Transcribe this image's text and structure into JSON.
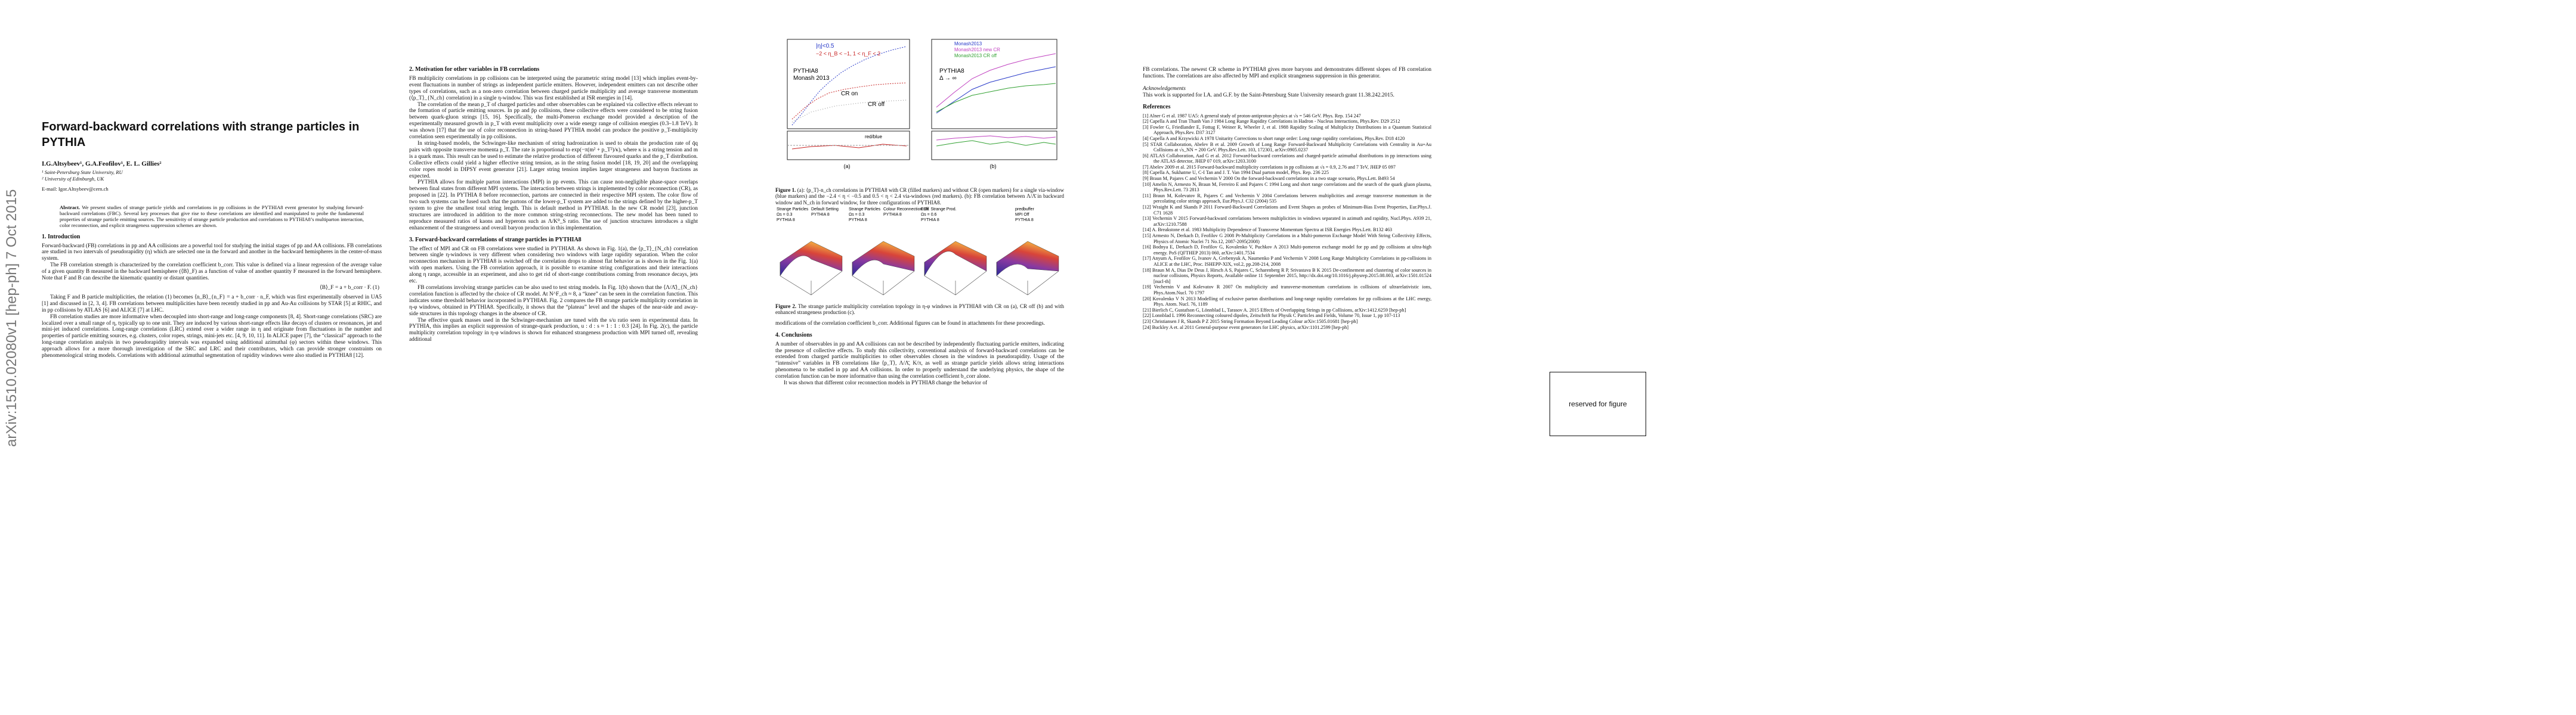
{
  "stamp": "arXiv:1510.02080v1  [hep-ph]  7 Oct 2015",
  "page1": {
    "title": "Forward-backward correlations with strange particles in PYTHIA",
    "authors": "I.G.Altsybeev¹, G.A.Feofilov¹, E. L. Gillies²",
    "affiliations": [
      "¹ Saint-Petersburg State University, RU",
      "² University of Edinburgh, UK"
    ],
    "email": "E-mail: Igor.Altsybeev@cern.ch",
    "abstract_label": "Abstract.",
    "abstract": "We present studies of strange particle yields and correlations in pp collisions in the PYTHIA8 event generator by studying forward-backward correlations (FBC). Several key processes that give rise to these correlations are identified and manipulated to probe the fundamental properties of strange particle emitting sources. The sensitivity of strange particle production and correlations to PYTHIA8’s multiparton interaction, color reconnection, and explicit strangeness suppression schemes are shown.",
    "section": {
      "heading": "1. Introduction",
      "paragraphs": [
        "Forward-backward (FB) correlations in pp and AA collisions are a powerful tool for studying the initial stages of pp and AA collisions. FB correlations are studied in two intervals of pseudorapidity (η) which are selected one in the forward and another in the backward hemispheres in the center-of-mass system.",
        "The FB correlation strength is characterized by the correlation coefficient b_corr. This value is defined via a linear regression of the average value of a given quantity B measured in the backward hemisphere (⟨B⟩_F) as a function of value of another quantity F measured in the forward hemisphere. Note that F and B can describe the kinematic quantity or distant quantities.",
        "⟨B⟩_F = a + b_corr · F.          (1)",
        "Taking F and B particle multiplicities, the relation (1) becomes ⟨n_B⟩_{n_F} = a + b_corr · n_F, which was first experimentally observed in UA5 [1] and discussed in [2, 3, 4]. FB correlations between multiplicities have been recently studied in pp and Au-Au collisions by STAR [5] at RHIC, and in pp collisions by ATLAS [6] and ALICE [7] at LHC.",
        "FB correlation studies are more informative when decoupled into short-range and long-range components [8, 4]. Short-range correlations (SRC) are localized over a small range of η, typically up to one unit. They are induced by various short-range effects like decays of clusters or resonances, jet and mini-jet induced correlations. Long-range correlations (LRC) extend over a wider range in η and originate from fluctuations in the number and properties of particle emitting sources, e.g. clusters, color ropes, strings, mini-jets etc. [4, 9, 10, 11]. In ALICE paper [7], the “classical” approach to the long-range correlation analysis in two pseudorapidity intervals was expanded using additional azimuthal (φ) sectors within these windows. This approach allows for a more thorough investigation of the SRC and LRC and their contributors, which can provide stronger constraints on phenomenological string models. Correlations with additional azimuthal segmentation of rapidity windows were also studied in PYTHIA8 [12]."
      ]
    }
  },
  "page2": {
    "sections": [
      {
        "heading": "2. Motivation for other variables in FB correlations",
        "paragraphs": [
          "FB multiplicity correlations in pp collisions can be interpreted using the parametric string model [13] which implies event-by-event fluctuations in number of strings as independent particle emitters. However, independent emitters can not describe other types of correlations, such as a non-zero correlation between charged particle multiplicity and average transverse momentum (⟨p_T⟩_{N_ch} correlation) in a single η-window. This was first established at ISR energies in [14].",
          "The correlation of the mean p_T of charged particles and other observables can be explained via collective effects relevant to the formation of particle emitting sources. In pp and p̄p collisions, these collective effects were considered to be string fusion between quark-gluon strings [15, 16]. Specifically, the multi-Pomeron exchange model provided a description of the experimentally measured growth in p_T with event multiplicity over a wide energy range of collision energies (0.3–1.8 TeV). It was shown [17] that the use of color reconnection in string-based PYTHIA model can produce the positive p_T-multiplicity correlation seen experimentally in pp collisions.",
          "In string-based models, the Schwinger-like mechanism of string hadronization is used to obtain the production rate of q̄q pairs with opposite transverse momenta p_T. The rate is proportional to exp(−π(m² + p_T²)/κ), where κ is a string tension and m is a quark mass. This result can be used to estimate the relative production of different flavoured quarks and the p_T distribution. Collective effects could yield a higher effective string tension, as in the string fusion model [18, 19, 20] and the overlapping color ropes model in DIPSY event generator [21]. Larger string tension implies larger strangeness and baryon fractions as expected.",
          "PYTHIA allows for multiple parton interactions (MPI) in pp events. This can cause non-negligible phase-space overlaps between final states from different MPI systems. The interaction between strings is implemented by color reconnection (CR), as proposed in [22]. In PYTHIA 8 before reconnection, partons are connected in their respective MPI system. The color flow of two such systems can be fused such that the partons of the lower-p_T system are added to the strings defined by the higher-p_T system to give the smallest total string length. This is default method in PYTHIA8. In the new CR model [23], junction structures are introduced in addition to the more common string-string reconnections. The new model has been tuned to reproduce measured ratios of kaons and hyperons such as Λ/K⁰_S ratio. The use of junction structures introduces a slight enhancement of the strangeness and overall baryon production in this implementation."
        ]
      },
      {
        "heading": "3. Forward-backward correlations of strange particles in PYTHIA8",
        "paragraphs": [
          "The effect of MPI and CR on FB correlations were studied in PYTHIA8. As shown in Fig. 1(a), the ⟨p_T⟩_{N_ch} correlation between single η-windows is very different when considering two windows with large rapidity separation. When the color reconnection mechanism in PYTHIA8 is switched off the correlation drops to almost flat behavior as is shown in the Fig. 1(a) with open markers. Using the FB correlation approach, it is possible to examine string configurations and their interactions along η range, accessible in an experiment, and also to get rid of short-range contributions coming from resonance decays, jets etc.",
          "FB correlations involving strange particles can be also used to test string models. In Fig. 1(b) shown that the ⟨Λ/Λ̄⟩_{N_ch} correlation function is affected by the choice of CR model. At N^F_ch ≈ 8, a “knee” can be seen in the correlation function. This indicates some threshold behavior incorporated in PYTHIA8. Fig. 2 compares the FB strange particle multiplicity correlation in η-φ windows, obtained in PYTHIA8. Specifically, it shows that the “plateau” level and the shapes of the near-side and away-side structures in this topology changes in the absence of CR.",
          "The effective quark masses used in the Schwinger-mechanism are tuned with the s/u ratio seen in experimental data. In PYTHIA, this implies an explicit suppression of strange-quark production, u : d : s ≈ 1 : 1 : 0.3 [24]. In Fig. 2(c), the particle multiplicity correlation topology in η-φ windows is shown for enhanced strangeness production with MPI turned off, revealing additional"
        ]
      }
    ]
  },
  "page3": {
    "figure1": {
      "panel_a": [
        "|η|<0.5",
        "−2 < η_B < −1, 1 < η_F < 2",
        "PYTHIA8",
        "Monash 2013",
        "CR on",
        "CR off"
      ],
      "panel_b": [
        "Monash2013",
        "Monash2013 new CR",
        "Monash2013 CR off",
        "PYTHIA8",
        "Δ → ∞"
      ],
      "ratio_label": "red/blue",
      "sublabels": [
        "(a)",
        "(b)"
      ],
      "caption_label": "Figure 1.",
      "caption": "(a): ⟨p_T⟩-n_ch correlations in PYTHIA8 with CR (filled markers) and without CR (open markers) for a single via-window (blue markers) and the −2.4 < η < −0.5 and 0.5 < η < 2.4 via-windows (red markers). (b): FB correlation between Λ/Λ̄ in backward window and N_ch in forward window, for three configurations of PYTHIA8."
    },
    "figure2": {
      "panels": [
        [
          "Strange Particles",
          "Ωs = 0.3",
          "PYTHIA 8"
        ],
        [
          "Default Setting",
          "PYTHIA 8"
        ],
        [
          "Strange Particles",
          "Ωs = 0.3",
          "PYTHIA 8"
        ],
        [
          "Colour Reconnection Off",
          "PYTHIA 8"
        ],
        [
          "Enh. Strange Prod.",
          "Ωs = 0.6",
          "PYTHIA 8"
        ],
        [
          "predbuffer",
          "MPI Off",
          "PYTHIA 8"
        ]
      ],
      "caption_label": "Figure 2.",
      "caption": "The strange particle multiplicity correlation topology in η-φ windows in PYTHIA8 with CR on (a), CR off (b) and with enhanced strangeness production (c)."
    },
    "paragraph": "modifications of the correlation coefficient b_corr. Additional figures can be found in attachments for these proceedings.",
    "section": {
      "heading": "4. Conclusions",
      "paragraphs": [
        "A number of observables in pp and AA collisions can not be described by independently fluctuating particle emitters, indicating the presence of collective effects. To study this collectivity, conventional analysis of forward-backward correlations can be extended from charged particle multiplicities to other observables chosen in the windows in pseudorapidity. Usage of the “intensive” variables in FB correlations like ⟨p_T⟩, Λ/Λ̄, K/π, as well as strange particle yields allows string interactions phenomena to be studied in pp and AA collisions. In order to properly understand the underlying physics, the shape of the correlation function can be more informative than using the correlation coefficient b_corr alone.",
        "It was shown that different color reconnection models in PYTHIA8 change the behavior of"
      ]
    }
  },
  "page4": {
    "paragraph": "FB correlations. The newest CR scheme in PYTHIA8 gives more baryons and demonstrates different slopes of FB correlation functions. The correlations are also affected by MPI and explicit strangeness suppression in this generator.",
    "ack_heading": "Acknowledgements",
    "ack": "This work is supported for I.A. and G.F. by the Saint-Petersburg State University research grant 11.38.242.2015.",
    "ref_heading": "References",
    "references": [
      "[1] Alner G et al. 1987 UA5: A general study of proton-antiproton physics at √s = 546 GeV. Phys. Rep. 154 247",
      "[2] Capella A and Tran Thanh Van J 1984 Long Range Rapidity Correlations in Hadron - Nucleus Interactions, Phys.Rev. D29 2512",
      "[3] Fowler G, Friedlander E, Fottug F, Weiner R, Wheeler J, et al. 1988 Rapidity Scaling of Multiplicity Distributions in a Quantum Statistical Approach, Phys.Rev. D37 3127",
      "[4] Capella A and Krzywicki A 1978 Unitarity Corrections to short range order: Long range rapidity correlations, Phys.Rev. D18 4120",
      "[5] STAR Collaboration, Abelev B et al. 2009 Growth of Long Range Forward-Backward Multiplicity Correlations with Centrality in Au+Au Collisions at √s_NN = 200 GeV. Phys.Rev.Lett. 103, 172301, arXiv:0905.0237",
      "[6] ATLAS Collaboration, Aad G et al. 2012 Forward-backward correlations and charged-particle azimuthal distributions in pp interactions using the ATLAS detector, JHEP 07 019, arXiv:1203.3100",
      "[7] Abelev 2009 et al. 2015 Forward-backward multiplicity correlations in pp collisions at √s = 0.9, 2.76 and 7 TeV, JHEP 05 097",
      "[8] Capella A, Sukhatme U, C-I Tan and J. T. Van 1994 Dual parton model, Phys. Rep. 236 225",
      "[9] Braun M, Pajares C and Vechernin V 2000 On the forward-backward correlations in a two stage scenario, Phys.Lett. B493 54",
      "[10] Amelin N, Armesto N, Braun M, Ferreiro E and Pajares C 1994 Long and short range correlations and the search of the quark gluon plasma, Phys.Rev.Lett. 73 2813",
      "[11] Braun M, Kolevatov R, Pajares C and Vechernin V 2004 Correlations between multiplicities and average transverse momentum in the percolating color strings approach, Eur.Phys.J. C32 (2004) 535",
      "[12] Wraight K and Skands P 2011 Forward-Backward Correlations and Event Shapes as probes of Minimum-Bias Event Properties, Eur.Phys.J. C71 1628",
      "[13] Vechernin V 2015 Forward-backward correlations between multiplicities in windows separated in azimuth and rapidity, Nucl.Phys. A939 21, arXiv:1210.7588",
      "[14] A. Breakstone et al. 1983 Multiplicity Dependence of Transverse Momentum Spectra at ISR Energies Phys.Lett. B132 463",
      "[15] Armesto N, Derkach D, Feofilov G 2008 Pt-Multiplicity Correlations in a Multi-pomeron Exchange Model With String Collectivity Effects, Physics of Atomic Nuclei 71 No.12, 2087-2095(2008)",
      "[16] Bodnya E, Derkach D, Feofilov G, Kovalenko V, Puchkov A 2013 Multi-pomeron exchange model for pp and p̄p collisions at ultra-high energy. PoS (QFTHEP 2013) 060, arXiv:1401.7534",
      "[17] Anyum A, Feofilov G, Ivanov A, Grebenyuk A, Naumenko P and Vechernin V 2008 Long Range Multiplicity Correlations in pp-collisions in ALICE at the LHC, Proc. ISHEPP-XIX, vol.2, pp.208-214, 2008",
      "[18] Braun M A, Dias De Deus J, Hirsch A S, Pajares C, Scharenberg R P, Srivastava B K 2015 De-confinement and clustering of color sources in nuclear collisions, Physics Reports, Available online 11 September 2015, http://dx.doi.org/10.1016/j.physrep.2015.08.003, arXiv:1501.01524 [nucl-th]",
      "[19] Vechernin V and Kolevatov R 2007 On multiplicity and transverse-momentum correlations in collisions of ultrarelativistic ions, Phys.Atom.Nucl. 70 1797",
      "[20] Kovalenko V N 2013 Modelling of exclusive parton distributions and long-range rapidity correlations for pp collisions at the LHC energy, Phys. Atom. Nucl. 76, 1189",
      "[21] Bierlich C, Gustafson G, Lönnblad L, Tarasov A. 2015 Effects of Overlapping Strings in pp Collisions, arXiv:1412.6259 [hep-ph]",
      "[22] Lonnblad L 1996 Reconnecting coloured dipoles, Zeitschrift fur Physik C Particles and Fields, Volume 70, Issue 1, pp 107-113",
      "[23] Christiansen J R, Skands P Z 2015 String Formation Beyond Leading Colour arXiv:1505.01681 [hep-ph]",
      "[24] Buckley A et. al 2011 General-purpose event generators for LHC physics, arXiv:1101.2599 [hep-ph]"
    ]
  },
  "placeholder": "reserved for figure"
}
